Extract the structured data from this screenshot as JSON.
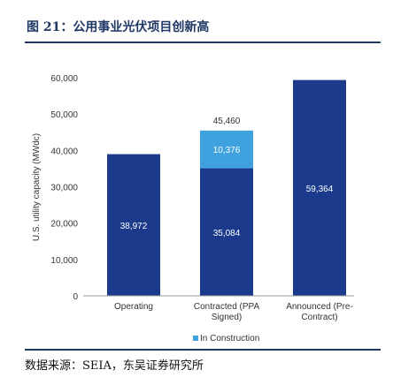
{
  "header": {
    "title": "图 21：公用事业光伏项目创新高"
  },
  "footer": {
    "source": "数据来源：SEIA，东吴证券研究所"
  },
  "chart_data": {
    "type": "bar",
    "stacked": true,
    "ylabel": "U.S. utility capacity (MWdc)",
    "ylim": [
      0,
      60000
    ],
    "yticks": [
      0,
      10000,
      20000,
      30000,
      40000,
      50000,
      60000
    ],
    "ytick_labels": [
      "0",
      "10,000",
      "20,000",
      "30,000",
      "40,000",
      "50,000",
      "60,000"
    ],
    "categories": [
      [
        "Operating"
      ],
      [
        "Contracted (PPA",
        "Signed)"
      ],
      [
        "Announced (Pre-",
        "Contract)"
      ]
    ],
    "series": [
      {
        "values": [
          38972,
          35084,
          59364
        ],
        "labels": [
          "38,972",
          "35,084",
          "59,364"
        ],
        "color": "#1b3a8c"
      },
      {
        "name": "In Construction",
        "values": [
          0,
          10376,
          0
        ],
        "labels": [
          "",
          "10,376",
          ""
        ],
        "color": "#3fa2de"
      }
    ],
    "totals": [
      null,
      45460,
      null
    ],
    "total_labels": [
      "",
      "45,460",
      ""
    ],
    "grid": false,
    "legend": "bottom",
    "colors": {
      "primary": "#1b3a8c",
      "secondary": "#3fa2de"
    }
  }
}
